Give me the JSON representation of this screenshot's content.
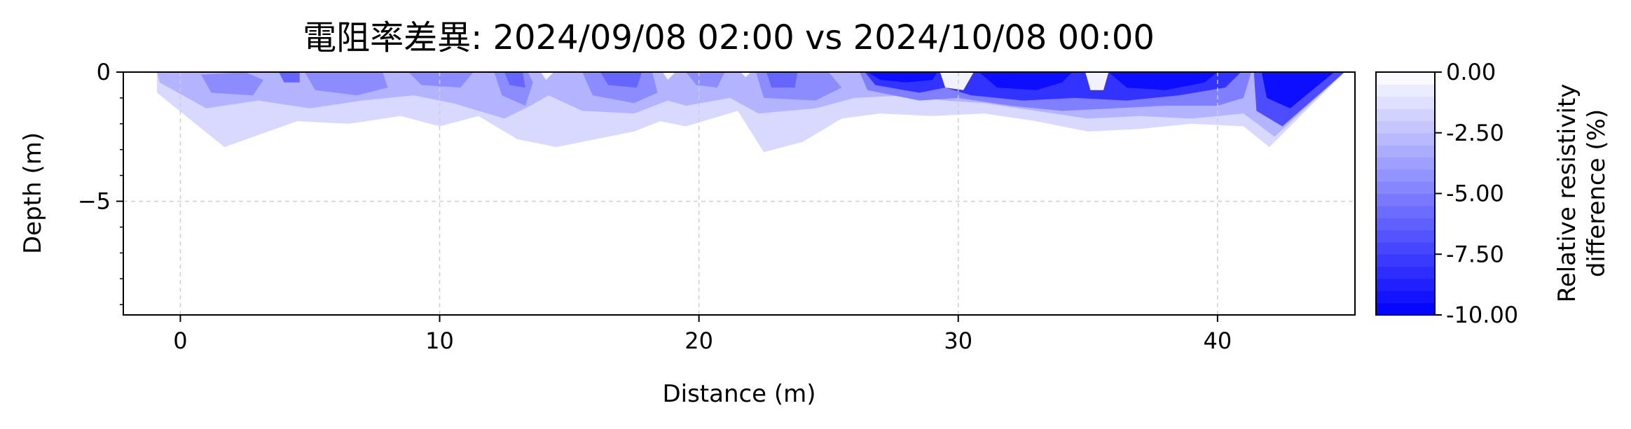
{
  "chart_data": {
    "type": "heatmap",
    "title": "電阻率差異: 2024/09/08 02:00 vs 2024/10/08 00:00",
    "xlabel": "Distance (m)",
    "ylabel": "Depth (m)",
    "xlim": [
      -2.2,
      45.3
    ],
    "ylim": [
      -9.4,
      0
    ],
    "x_ticks": [
      0,
      10,
      20,
      30,
      40
    ],
    "x_tick_labels": [
      "0",
      "10",
      "20",
      "30",
      "40"
    ],
    "y_ticks": [
      0,
      -5
    ],
    "y_tick_labels": [
      "0",
      "−5"
    ],
    "grid": true,
    "colorbar": {
      "label_lines": [
        "Relative resistivity",
        "difference (%)"
      ],
      "range": [
        -10,
        0
      ],
      "levels": 20,
      "ticks": [
        0,
        -2.5,
        -5,
        -7.5,
        -10
      ],
      "tick_labels": [
        "0.00",
        "-2.50",
        "-5.00",
        "-7.50",
        "-10.00"
      ],
      "color_min": "#0000ff",
      "color_max": "#ffffff"
    },
    "contour_bands": [
      {
        "name": "-1.5",
        "value": -1.5,
        "polygon": [
          [
            -0.9,
            0
          ],
          [
            -0.9,
            -0.8
          ],
          [
            1.7,
            -2.9
          ],
          [
            4.5,
            -1.9
          ],
          [
            6.5,
            -2.0
          ],
          [
            8.5,
            -1.7
          ],
          [
            10.0,
            -2.1
          ],
          [
            11.5,
            -1.7
          ],
          [
            13.0,
            -2.6
          ],
          [
            14.5,
            -2.9
          ],
          [
            16.0,
            -2.6
          ],
          [
            17.5,
            -2.3
          ],
          [
            18.5,
            -1.9
          ],
          [
            19.5,
            -2.1
          ],
          [
            20.5,
            -1.8
          ],
          [
            21.5,
            -1.5
          ],
          [
            22.5,
            -3.1
          ],
          [
            24.0,
            -2.7
          ],
          [
            25.5,
            -1.8
          ],
          [
            27.0,
            -1.6
          ],
          [
            29.0,
            -1.7
          ],
          [
            31.0,
            -1.6
          ],
          [
            33.0,
            -1.9
          ],
          [
            35.0,
            -2.3
          ],
          [
            37.0,
            -2.2
          ],
          [
            39.0,
            -2.0
          ],
          [
            41.0,
            -2.1
          ],
          [
            42.0,
            -2.9
          ],
          [
            44.9,
            0
          ]
        ]
      },
      {
        "name": "-3",
        "value": -3,
        "polygon": [
          [
            -0.9,
            0
          ],
          [
            -0.8,
            -0.4
          ],
          [
            1.0,
            -1.4
          ],
          [
            3.0,
            -1.1
          ],
          [
            5.0,
            -1.4
          ],
          [
            7.0,
            -1.1
          ],
          [
            9.0,
            -0.9
          ],
          [
            10.5,
            -1.2
          ],
          [
            12.5,
            -1.8
          ],
          [
            13.5,
            -1.3
          ],
          [
            14.2,
            -0.9
          ],
          [
            15.5,
            -1.5
          ],
          [
            17.5,
            -1.6
          ],
          [
            18.8,
            -1.1
          ],
          [
            19.5,
            -1.3
          ],
          [
            21.2,
            -1.0
          ],
          [
            22.3,
            -1.6
          ],
          [
            24.5,
            -1.4
          ],
          [
            26.0,
            -1.0
          ],
          [
            28.0,
            -0.9
          ],
          [
            29.5,
            -1.1
          ],
          [
            31.0,
            -1.2
          ],
          [
            33.0,
            -1.5
          ],
          [
            35.0,
            -1.8
          ],
          [
            37.0,
            -1.7
          ],
          [
            39.0,
            -1.8
          ],
          [
            41.0,
            -1.6
          ],
          [
            42.2,
            -2.5
          ],
          [
            44.9,
            0
          ]
        ]
      },
      {
        "name": "-5",
        "value": -5,
        "polygon": [
          [
            26.2,
            0
          ],
          [
            26.5,
            -0.7
          ],
          [
            28.5,
            -1.1
          ],
          [
            30.0,
            -1.0
          ],
          [
            32.0,
            -1.3
          ],
          [
            34.0,
            -1.5
          ],
          [
            36.0,
            -1.4
          ],
          [
            38.0,
            -1.3
          ],
          [
            40.0,
            -1.3
          ],
          [
            41.0,
            -1.0
          ],
          [
            41.3,
            0
          ]
        ]
      },
      {
        "name": "-8",
        "value": -8,
        "polygon": [
          [
            26.4,
            0
          ],
          [
            26.8,
            -0.5
          ],
          [
            28.5,
            -0.8
          ],
          [
            29.5,
            -0.6
          ],
          [
            30.5,
            -0.9
          ],
          [
            32.5,
            -1.1
          ],
          [
            34.5,
            -1.0
          ],
          [
            36.5,
            -1.1
          ],
          [
            38.5,
            -0.9
          ],
          [
            40.3,
            -0.6
          ],
          [
            40.9,
            0
          ]
        ]
      },
      {
        "name": "-9.5",
        "value": -9.5,
        "polygon": [
          [
            26.5,
            0
          ],
          [
            27.0,
            -0.3
          ],
          [
            28.0,
            -0.4
          ],
          [
            29.0,
            -0.3
          ],
          [
            29.2,
            0
          ]
        ]
      },
      {
        "name": "-9.5-b",
        "value": -9.5,
        "polygon": [
          [
            30.8,
            0
          ],
          [
            31.5,
            -0.6
          ],
          [
            33.0,
            -0.7
          ],
          [
            34.0,
            -0.4
          ],
          [
            34.4,
            0
          ]
        ]
      },
      {
        "name": "-9.5-c",
        "value": -9.5,
        "polygon": [
          [
            35.8,
            0
          ],
          [
            36.5,
            -0.6
          ],
          [
            38.0,
            -0.7
          ],
          [
            39.5,
            -0.4
          ],
          [
            40.0,
            0
          ]
        ]
      },
      {
        "name": "-7",
        "value": -7,
        "polygon": [
          [
            41.4,
            0
          ],
          [
            41.5,
            -1.5
          ],
          [
            42.5,
            -2.1
          ],
          [
            44.9,
            0
          ]
        ]
      },
      {
        "name": "-9.5-d",
        "value": -9.5,
        "polygon": [
          [
            41.7,
            0
          ],
          [
            41.9,
            -1.0
          ],
          [
            42.8,
            -1.4
          ],
          [
            44.5,
            0
          ]
        ]
      },
      {
        "name": "-4.5",
        "value": -4.5,
        "polygon": [
          [
            0.8,
            -0.1
          ],
          [
            1.2,
            -0.8
          ],
          [
            2.8,
            -0.9
          ],
          [
            3.2,
            -0.3
          ],
          [
            2.5,
            0
          ]
        ]
      },
      {
        "name": "-4.5",
        "value": -4.5,
        "polygon": [
          [
            4.8,
            0
          ],
          [
            5.2,
            -0.7
          ],
          [
            6.8,
            -0.9
          ],
          [
            8.0,
            -0.6
          ],
          [
            7.8,
            0
          ]
        ]
      },
      {
        "name": "-4.5",
        "value": -4.5,
        "polygon": [
          [
            8.8,
            0
          ],
          [
            9.3,
            -0.5
          ],
          [
            10.8,
            -0.6
          ],
          [
            11.3,
            0
          ]
        ]
      },
      {
        "name": "-4.5",
        "value": -4.5,
        "polygon": [
          [
            12.1,
            0
          ],
          [
            12.4,
            -0.9
          ],
          [
            13.3,
            -1.3
          ],
          [
            13.6,
            -0.4
          ],
          [
            13.4,
            0
          ]
        ]
      },
      {
        "name": "-4.5",
        "value": -4.5,
        "polygon": [
          [
            15.5,
            0
          ],
          [
            15.9,
            -0.9
          ],
          [
            17.5,
            -1.2
          ],
          [
            18.4,
            -0.8
          ],
          [
            18.2,
            0
          ]
        ]
      },
      {
        "name": "-4.5",
        "value": -4.5,
        "polygon": [
          [
            19.5,
            0
          ],
          [
            19.9,
            -0.5
          ],
          [
            20.7,
            -0.6
          ],
          [
            21.0,
            0
          ]
        ]
      },
      {
        "name": "-4.5",
        "value": -4.5,
        "polygon": [
          [
            22.2,
            0
          ],
          [
            22.5,
            -1.0
          ],
          [
            24.5,
            -1.1
          ],
          [
            25.5,
            -0.6
          ],
          [
            25.0,
            0
          ]
        ]
      },
      {
        "name": "-6",
        "value": -6,
        "polygon": [
          [
            12.5,
            0
          ],
          [
            12.7,
            -0.5
          ],
          [
            13.3,
            -0.6
          ],
          [
            13.2,
            0
          ]
        ]
      },
      {
        "name": "-6",
        "value": -6,
        "polygon": [
          [
            16.2,
            0
          ],
          [
            16.5,
            -0.5
          ],
          [
            17.6,
            -0.6
          ],
          [
            17.8,
            0
          ]
        ]
      },
      {
        "name": "-6",
        "value": -6,
        "polygon": [
          [
            3.8,
            0
          ],
          [
            4.0,
            -0.4
          ],
          [
            4.6,
            -0.4
          ],
          [
            4.6,
            0
          ]
        ]
      },
      {
        "name": "-6",
        "value": -6,
        "polygon": [
          [
            22.6,
            0
          ],
          [
            22.8,
            -0.6
          ],
          [
            23.7,
            -0.6
          ],
          [
            23.8,
            0
          ]
        ]
      },
      {
        "name": "-0.5",
        "value": -0.5,
        "polygon": [
          [
            13.9,
            0
          ],
          [
            14.1,
            -0.3
          ],
          [
            14.4,
            0
          ]
        ]
      },
      {
        "name": "-0.5",
        "value": -0.5,
        "polygon": [
          [
            18.6,
            0
          ],
          [
            18.8,
            -0.3
          ],
          [
            19.1,
            0
          ]
        ]
      },
      {
        "name": "-0.5",
        "value": -0.5,
        "polygon": [
          [
            21.6,
            0
          ],
          [
            21.8,
            -0.2
          ],
          [
            22.0,
            0
          ]
        ]
      },
      {
        "name": "-0.5",
        "value": -0.5,
        "polygon": [
          [
            29.3,
            0
          ],
          [
            29.5,
            -0.6
          ],
          [
            30.2,
            -0.7
          ],
          [
            30.6,
            0
          ]
        ]
      },
      {
        "name": "-0.5",
        "value": -0.5,
        "polygon": [
          [
            34.9,
            0
          ],
          [
            35.1,
            -0.7
          ],
          [
            35.6,
            -0.7
          ],
          [
            35.8,
            0
          ]
        ]
      }
    ]
  }
}
